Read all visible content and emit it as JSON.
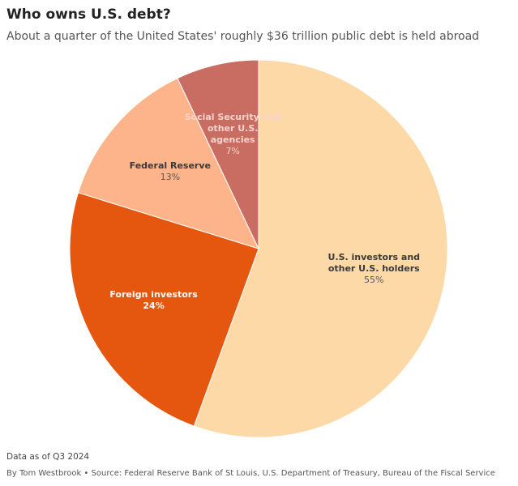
{
  "chart_data": {
    "type": "pie",
    "title": "Who owns U.S. debt?",
    "subtitle": "About a quarter of the United States' roughly $36 trillion public debt is held abroad",
    "categories": [
      "U.S. investors and other U.S. holders",
      "Foreign investors",
      "Federal Reserve",
      "Social Security and other U.S. agencies"
    ],
    "values": [
      55,
      24,
      13,
      7
    ],
    "value_labels": [
      "55%",
      "24%",
      "13%",
      "7%"
    ],
    "colors": [
      "#fdd9a8",
      "#e5560e",
      "#fdb48a",
      "#c96d63"
    ],
    "note": "Data as of Q3 2024",
    "source": "By Tom Westbrook • Source: Federal Reserve Bank of St Louis, U.S. Department of Treasury, Bureau of the Fiscal Service"
  }
}
